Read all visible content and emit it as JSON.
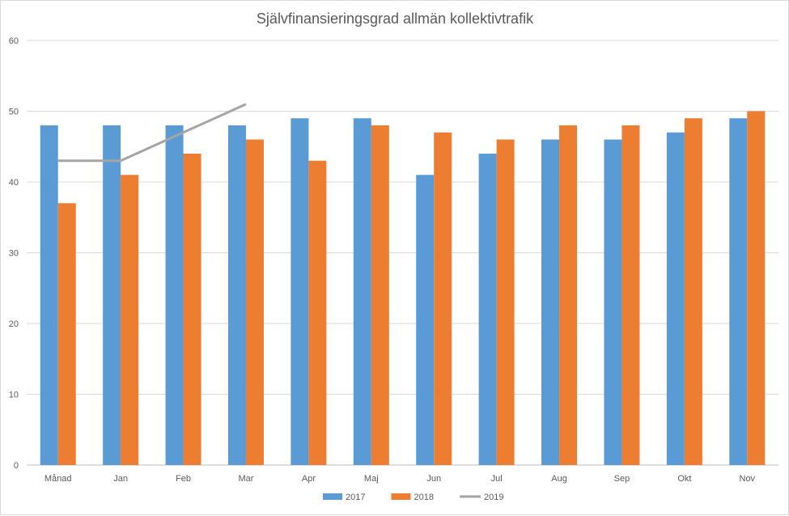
{
  "chart_data": {
    "type": "bar",
    "title": "Självfinansieringsgrad allmän kollektivtrafik",
    "xlabel": "",
    "ylabel": "",
    "categories": [
      "Månad",
      "Jan",
      "Feb",
      "Mar",
      "Apr",
      "Maj",
      "Jun",
      "Jul",
      "Aug",
      "Sep",
      "Okt",
      "Nov"
    ],
    "ylim": [
      0,
      60
    ],
    "yticks": [
      0,
      10,
      20,
      30,
      40,
      50,
      60
    ],
    "grid": true,
    "legend_position": "bottom",
    "series": [
      {
        "name": "2017",
        "type": "bar",
        "color": "#5b9bd5",
        "values": [
          48,
          48,
          48,
          48,
          49,
          49,
          41,
          44,
          46,
          46,
          47,
          49
        ]
      },
      {
        "name": "2018",
        "type": "bar",
        "color": "#ed7d31",
        "values": [
          37,
          41,
          44,
          46,
          43,
          48,
          47,
          46,
          48,
          48,
          49,
          50
        ]
      },
      {
        "name": "2019",
        "type": "line",
        "color": "#a5a5a5",
        "values": [
          43,
          43,
          47,
          51,
          null,
          null,
          null,
          null,
          null,
          null,
          null,
          null
        ]
      }
    ]
  }
}
